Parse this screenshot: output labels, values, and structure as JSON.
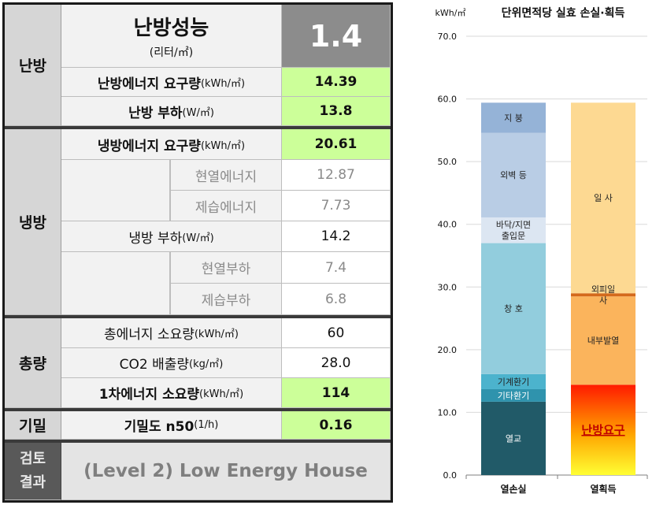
{
  "table": {
    "groups": {
      "heating": "난방",
      "cooling": "냉방",
      "total": "총량",
      "airtight": "기밀",
      "review": "검토\n결과"
    },
    "perf": {
      "title": "난방성능",
      "unit": "(리터/㎡)",
      "value": "1.4"
    },
    "heat_demand": {
      "label": "난방에너지 요구량",
      "unit": "(kWh/㎡)",
      "value": "14.39"
    },
    "heat_load": {
      "label": "난방 부하",
      "unit": "(W/㎡)",
      "value": "13.8"
    },
    "cool_demand": {
      "label": "냉방에너지 요구량",
      "unit": "(kWh/㎡)",
      "value": "20.61"
    },
    "sensible_energy": {
      "label": "현열에너지",
      "value": "12.87"
    },
    "latent_energy": {
      "label": "제습에너지",
      "value": "7.73"
    },
    "cool_load": {
      "label": "냉방 부하",
      "unit": "(W/㎡)",
      "value": "14.2"
    },
    "sensible_load": {
      "label": "현열부하",
      "value": "7.4"
    },
    "latent_load": {
      "label": "제습부하",
      "value": "6.8"
    },
    "total_energy": {
      "label": "총에너지 소요량",
      "unit": "(kWh/㎡)",
      "value": "60"
    },
    "co2": {
      "label": "CO2 배출량",
      "unit": "(kg/㎡)",
      "value": "28.0"
    },
    "primary": {
      "label": "1차에너지 소요량",
      "unit": "(kWh/㎡)",
      "value": "114"
    },
    "n50": {
      "label": "기밀도 n50",
      "unit": " (1/h)",
      "value": "0.16"
    },
    "result": "(Level 2) Low Energy House"
  },
  "chart_data": {
    "type": "bar",
    "stacked": true,
    "title": "단위면적당 실효 손실·획득",
    "ylabel": "kWh/㎡",
    "ylim": [
      0,
      70
    ],
    "yticks": [
      "0.0",
      "10.0",
      "20.0",
      "30.0",
      "40.0",
      "50.0",
      "60.0",
      "70.0"
    ],
    "categories": [
      "열손실",
      "열획득"
    ],
    "grid": true,
    "stacks": [
      {
        "category": "열손실",
        "segments": [
          {
            "label": "열교",
            "value": 11.7,
            "color": "#215a68",
            "text_color": "#ffffff"
          },
          {
            "label": "기타환기",
            "value": 2.0,
            "color": "#2f93ad",
            "text_color": "#ffffff"
          },
          {
            "label": "기계환기",
            "value": 2.4,
            "color": "#4cb3cd",
            "text_color": "#222222"
          },
          {
            "label": "창 호",
            "value": 20.9,
            "color": "#92cddd",
            "text_color": "#222222"
          },
          {
            "label": "바닥/지면\n출입문",
            "value": 4.1,
            "color": "#dce6f2",
            "text_color": "#222222"
          },
          {
            "label": "외벽 등",
            "value": 13.5,
            "color": "#b9cde5",
            "text_color": "#222222"
          },
          {
            "label": "지 붕",
            "value": 4.8,
            "color": "#95b3d7",
            "text_color": "#222222"
          }
        ]
      },
      {
        "category": "열획득",
        "segments": [
          {
            "label": "난방요구",
            "value": 14.4,
            "color": "gradient-heat",
            "text_color": "#c00000"
          },
          {
            "label": "내부발열",
            "value": 14.1,
            "color": "#fbb45c",
            "text_color": "#222222"
          },
          {
            "label": "외피일\n사",
            "value": 0.5,
            "color": "#d46a1c",
            "text_color": "#222222"
          },
          {
            "label": "일 사",
            "value": 30.4,
            "color": "#fdd992",
            "text_color": "#222222"
          }
        ]
      }
    ]
  }
}
